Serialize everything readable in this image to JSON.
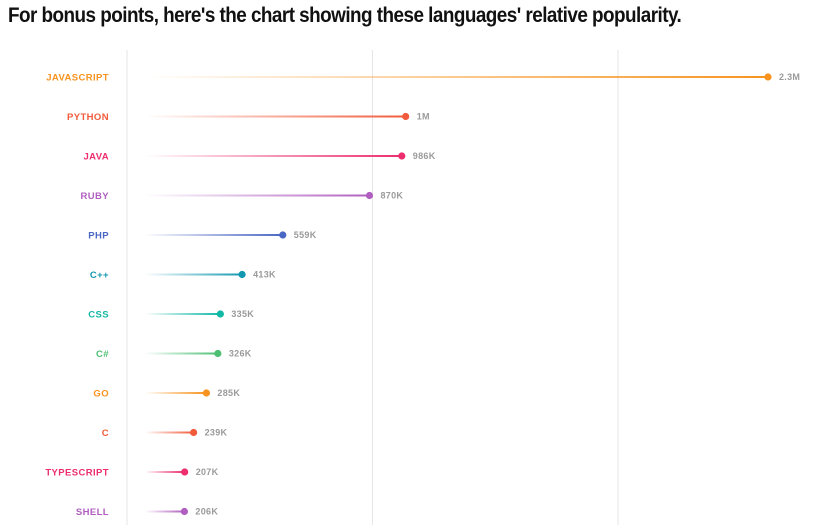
{
  "heading": "For bonus points, here's the chart showing these languages' relative popularity.",
  "chart_data": {
    "type": "bar",
    "style": "lollipop",
    "orientation": "horizontal",
    "grid": true,
    "xlim": [
      0,
      2500000
    ],
    "categories": [
      "JAVASCRIPT",
      "PYTHON",
      "JAVA",
      "RUBY",
      "PHP",
      "C++",
      "CSS",
      "C#",
      "GO",
      "C",
      "TYPESCRIPT",
      "SHELL"
    ],
    "values": [
      2300000,
      1000000,
      986000,
      870000,
      559000,
      413000,
      335000,
      326000,
      285000,
      239000,
      207000,
      206000
    ],
    "value_labels": [
      "2.3M",
      "1M",
      "986K",
      "870K",
      "559K",
      "413K",
      "335K",
      "326K",
      "285K",
      "239K",
      "207K",
      "206K"
    ],
    "colors": [
      "#f7931e",
      "#f15a3a",
      "#ec2d6e",
      "#b05fc0",
      "#4a67c4",
      "#1198b0",
      "#12b8a6",
      "#4cbf72",
      "#f7931e",
      "#f15a3a",
      "#ec2d6e",
      "#b05fc0"
    ]
  }
}
